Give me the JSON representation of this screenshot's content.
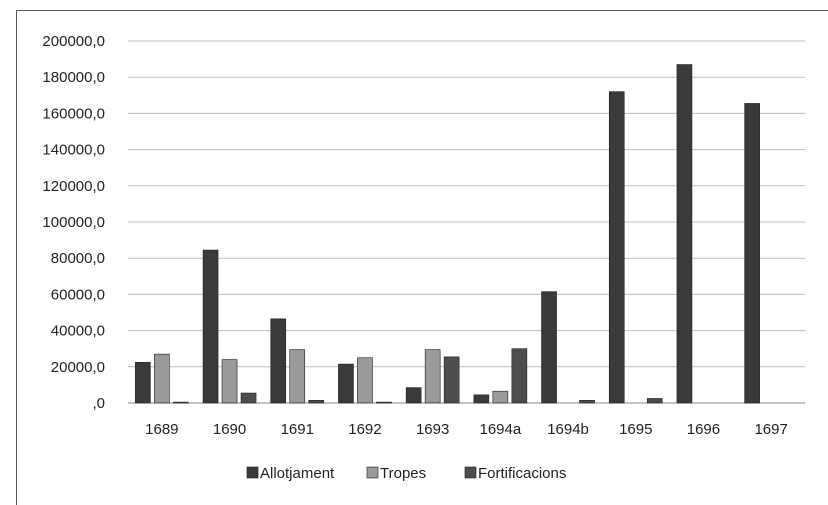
{
  "chart_data": {
    "type": "bar",
    "title": "",
    "xlabel": "",
    "ylabel": "",
    "categories": [
      "1689",
      "1690",
      "1691",
      "1692",
      "1693",
      "1694a",
      "1694b",
      "1695",
      "1696",
      "1697"
    ],
    "ylim": [
      0,
      200000
    ],
    "y_ticks": [
      "200000,0",
      "180000,0",
      "160000,0",
      "140000,0",
      "120000,0",
      "100000,0",
      "80000,0",
      "60000,0",
      "40000,0",
      "20000,0",
      ",0"
    ],
    "grid": true,
    "legend_position": "bottom",
    "series": [
      {
        "name": "Allotjament",
        "color": "#3a3a3a",
        "values": [
          22500,
          84500,
          46500,
          21500,
          8500,
          4500,
          61500,
          172000,
          187000,
          165500
        ]
      },
      {
        "name": "Tropes",
        "color": "#9a9a9a",
        "values": [
          27000,
          24000,
          29500,
          25000,
          29500,
          6500,
          0,
          0,
          0,
          0
        ]
      },
      {
        "name": "Fortificacions",
        "color": "#4d4d4d",
        "values": [
          500,
          5500,
          1500,
          500,
          25500,
          30000,
          1500,
          2500,
          0,
          0
        ]
      }
    ]
  }
}
